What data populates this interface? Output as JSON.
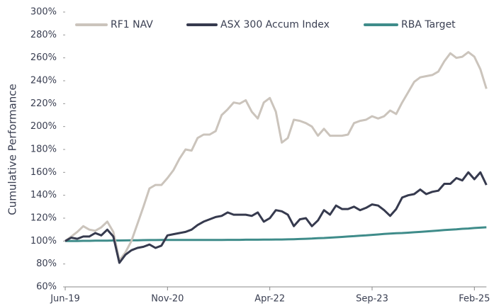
{
  "chart_data": {
    "type": "line",
    "ylabel": "Cumulative Performance",
    "categories": [
      "Jun-19",
      null,
      null,
      null,
      null,
      null,
      null,
      null,
      null,
      null,
      null,
      null,
      null,
      null,
      null,
      null,
      null,
      "Nov-20",
      null,
      null,
      null,
      null,
      null,
      null,
      null,
      null,
      null,
      null,
      null,
      null,
      null,
      null,
      null,
      null,
      "Apr-22",
      null,
      null,
      null,
      null,
      null,
      null,
      null,
      null,
      null,
      null,
      null,
      null,
      null,
      null,
      null,
      null,
      "Sep-23",
      null,
      null,
      null,
      null,
      null,
      null,
      null,
      null,
      null,
      null,
      null,
      null,
      null,
      null,
      null,
      null,
      "Feb-25",
      null,
      null
    ],
    "series": [
      {
        "name": "RF1 NAV",
        "color": "#cbc4bc",
        "values": [
          100,
          104,
          108,
          113,
          110,
          109,
          112,
          117,
          108,
          83,
          90,
          100,
          115,
          130,
          146,
          149,
          149,
          155,
          162,
          172,
          180,
          179,
          190,
          193,
          193,
          196,
          210,
          215,
          221,
          220,
          223,
          213,
          207,
          221,
          225,
          213,
          186,
          190,
          206,
          205,
          203,
          200,
          192,
          198,
          192,
          192,
          192,
          193,
          203,
          205,
          206,
          209,
          207,
          209,
          214,
          211,
          221,
          230,
          239,
          243,
          244,
          245,
          248,
          257,
          264,
          260,
          261,
          265,
          261,
          250,
          233
        ]
      },
      {
        "name": "ASX 300 Accum Index",
        "color": "#363a4e",
        "values": [
          100,
          103,
          102,
          104,
          104,
          107,
          105,
          110,
          104,
          81,
          88,
          92,
          94,
          95,
          97,
          94,
          96,
          105,
          106,
          107,
          108,
          110,
          114,
          117,
          119,
          121,
          122,
          125,
          123,
          123,
          123,
          122,
          125,
          117,
          120,
          127,
          126,
          123,
          113,
          119,
          120,
          113,
          118,
          127,
          123,
          131,
          128,
          128,
          130,
          127,
          129,
          132,
          131,
          127,
          122,
          128,
          138,
          140,
          141,
          145,
          141,
          143,
          144,
          150,
          150,
          155,
          153,
          160,
          154,
          160,
          149
        ]
      },
      {
        "name": "RBA Target",
        "color": "#3f8c8a",
        "values": [
          100,
          100.1,
          100.1,
          100.2,
          100.2,
          100.3,
          100.4,
          100.4,
          100.5,
          100.5,
          100.6,
          100.7,
          100.7,
          100.8,
          100.9,
          100.9,
          101,
          101,
          101,
          101,
          101,
          101,
          101,
          101,
          101,
          101,
          101,
          101.1,
          101.1,
          101.1,
          101.2,
          101.2,
          101.2,
          101.3,
          101.3,
          101.4,
          101.4,
          101.5,
          101.6,
          101.8,
          102,
          102.2,
          102.5,
          102.7,
          103,
          103.3,
          103.6,
          104,
          104.3,
          104.7,
          105,
          105.4,
          105.8,
          106.2,
          106.5,
          106.8,
          107,
          107.3,
          107.7,
          108,
          108.4,
          108.8,
          109.2,
          109.6,
          110,
          110.3,
          110.7,
          111,
          111.4,
          111.7,
          112
        ]
      }
    ],
    "ylim": [
      60,
      300
    ],
    "yticks": [
      {
        "value": 60,
        "label": "60%"
      },
      {
        "value": 80,
        "label": "80%"
      },
      {
        "value": 100,
        "label": "100%"
      },
      {
        "value": 120,
        "label": "120%"
      },
      {
        "value": 140,
        "label": "140%"
      },
      {
        "value": 160,
        "label": "160%"
      },
      {
        "value": 180,
        "label": "180%"
      },
      {
        "value": 200,
        "label": "200%"
      },
      {
        "value": 220,
        "label": "220%"
      },
      {
        "value": 240,
        "label": "240%"
      },
      {
        "value": 260,
        "label": "260%"
      },
      {
        "value": 280,
        "label": "280%"
      },
      {
        "value": 300,
        "label": "300%"
      }
    ],
    "grid": false,
    "legend": "top"
  }
}
